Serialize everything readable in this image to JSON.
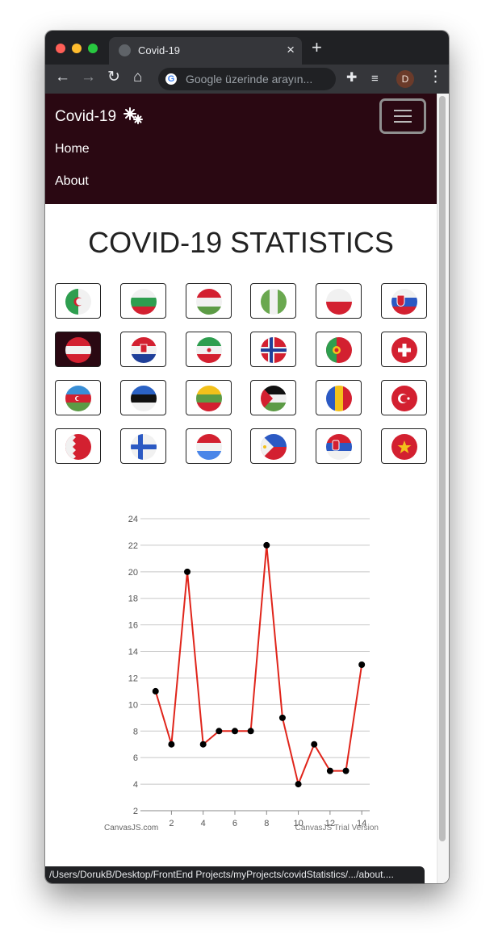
{
  "browser": {
    "tab_title": "Covid-19",
    "omnibox_placeholder": "Google üzerinde arayın...",
    "profile_initial": "D",
    "status_url": "/Users/DorukB/Desktop/FrontEnd Projects/myProjects/covidStatistics/.../about...."
  },
  "navbar": {
    "brand": "Covid-19",
    "links": [
      "Home",
      "About"
    ],
    "color": "#2a0812"
  },
  "page": {
    "title": "COVID-19 STATISTICS"
  },
  "flags": [
    {
      "name": "Algeria",
      "icon": "flag-algeria-icon"
    },
    {
      "name": "Bulgaria",
      "icon": "flag-bulgaria-icon"
    },
    {
      "name": "Hungary",
      "icon": "flag-hungary-icon"
    },
    {
      "name": "Nigeria",
      "icon": "flag-nigeria-icon"
    },
    {
      "name": "Poland",
      "icon": "flag-poland-icon"
    },
    {
      "name": "Slovakia",
      "icon": "flag-slovakia-icon"
    },
    {
      "name": "Austria",
      "icon": "flag-austria-icon",
      "selected": true
    },
    {
      "name": "Croatia",
      "icon": "flag-croatia-icon"
    },
    {
      "name": "Iran",
      "icon": "flag-iran-icon"
    },
    {
      "name": "Norway",
      "icon": "flag-norway-icon"
    },
    {
      "name": "Portugal",
      "icon": "flag-portugal-icon"
    },
    {
      "name": "Switzerland",
      "icon": "flag-switzerland-icon"
    },
    {
      "name": "Azerbaijan",
      "icon": "flag-azerbaijan-icon"
    },
    {
      "name": "Estonia",
      "icon": "flag-estonia-icon"
    },
    {
      "name": "Lithuania",
      "icon": "flag-lithuania-icon"
    },
    {
      "name": "Palestine",
      "icon": "flag-palestine-icon"
    },
    {
      "name": "Romania",
      "icon": "flag-romania-icon"
    },
    {
      "name": "Turkey",
      "icon": "flag-turkey-icon"
    },
    {
      "name": "Bahrain",
      "icon": "flag-bahrain-icon"
    },
    {
      "name": "Finland",
      "icon": "flag-finland-icon"
    },
    {
      "name": "Netherlands",
      "icon": "flag-netherlands-icon"
    },
    {
      "name": "Philippines",
      "icon": "flag-philippines-icon"
    },
    {
      "name": "Serbia",
      "icon": "flag-serbia-icon"
    },
    {
      "name": "Vietnam",
      "icon": "flag-vietnam-icon"
    }
  ],
  "chart_data": {
    "type": "line",
    "x": [
      1,
      2,
      3,
      4,
      5,
      6,
      7,
      8,
      9,
      10,
      11,
      12,
      13,
      14
    ],
    "series": [
      {
        "values": [
          11,
          7,
          20,
          7,
          8,
          8,
          8,
          22,
          9,
          4,
          7,
          5,
          5,
          13
        ],
        "color": "#e0251b"
      }
    ],
    "xticks": [
      2,
      4,
      6,
      8,
      10,
      12,
      14
    ],
    "yticks": [
      2,
      4,
      6,
      8,
      10,
      12,
      14,
      16,
      18,
      20,
      22,
      24
    ],
    "xlim": [
      0.25,
      14.5
    ],
    "ylim": [
      2,
      24
    ],
    "grid": true,
    "credit_left": "CanvasJS.com",
    "credit_right": "CanvasJS Trial Version"
  }
}
